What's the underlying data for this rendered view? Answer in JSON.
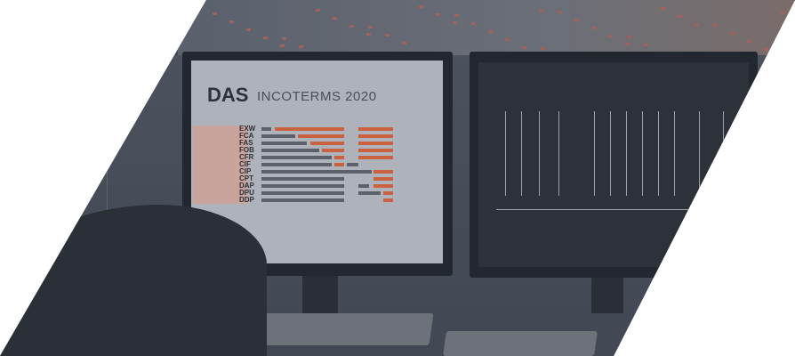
{
  "poster": {
    "logo": "DAS",
    "title": "INCOTERMS 2020",
    "terms": [
      "EXW",
      "FCA",
      "FAS",
      "FOB",
      "CFR",
      "CIF",
      "CIP",
      "CPT",
      "DAP",
      "DPU",
      "DDP"
    ]
  },
  "colors": {
    "overlay": "#3e4452",
    "accent": "#c8623f",
    "bar_gray": "#5b606a"
  }
}
